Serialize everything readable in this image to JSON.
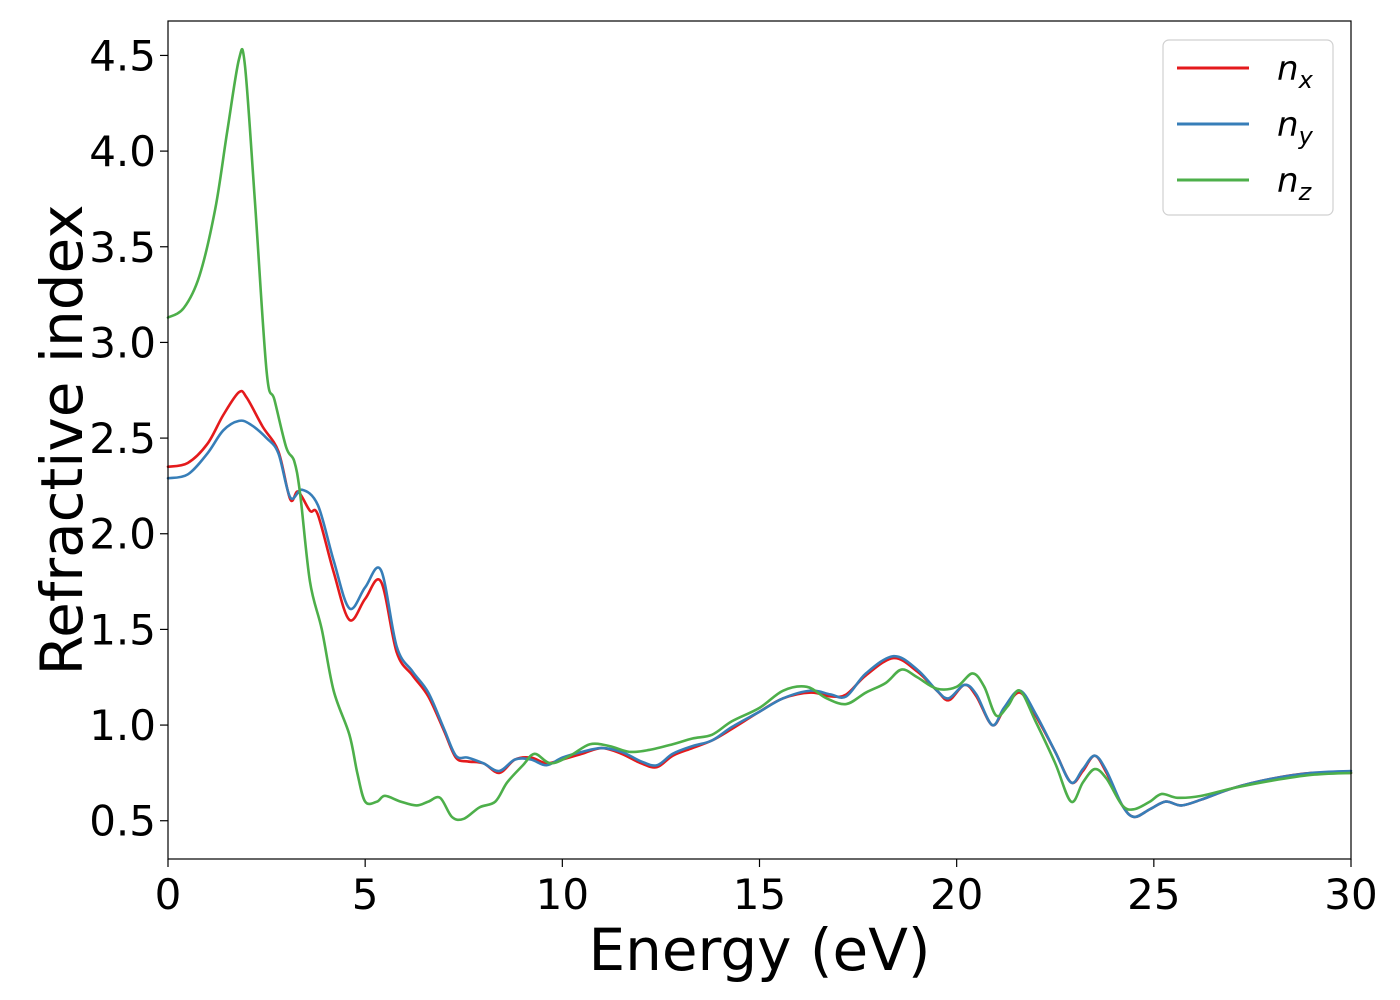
{
  "chart_data": {
    "type": "line",
    "title": "",
    "xlabel": "Energy (eV)",
    "ylabel": "Refractive index",
    "xlim": [
      0,
      30
    ],
    "ylim": [
      0.3,
      4.68
    ],
    "xticks": [
      0,
      5,
      10,
      15,
      20,
      25,
      30
    ],
    "xtick_labels": [
      "0",
      "5",
      "10",
      "15",
      "20",
      "25",
      "30"
    ],
    "yticks": [
      0.5,
      1.0,
      1.5,
      2.0,
      2.5,
      3.0,
      3.5,
      4.0,
      4.5
    ],
    "ytick_labels": [
      "0.5",
      "1.0",
      "1.5",
      "2.0",
      "2.5",
      "3.0",
      "3.5",
      "4.0",
      "4.5"
    ],
    "grid": false,
    "legend_position": "top-right",
    "series": [
      {
        "name": "n_x",
        "legend_base": "n",
        "legend_sub": "x",
        "color": "#e41a1c",
        "points": [
          [
            0,
            2.35
          ],
          [
            0.5,
            2.37
          ],
          [
            1.0,
            2.47
          ],
          [
            1.4,
            2.62
          ],
          [
            1.8,
            2.74
          ],
          [
            2.0,
            2.71
          ],
          [
            2.4,
            2.56
          ],
          [
            2.8,
            2.43
          ],
          [
            3.1,
            2.18
          ],
          [
            3.3,
            2.22
          ],
          [
            3.6,
            2.12
          ],
          [
            3.8,
            2.1
          ],
          [
            4.2,
            1.8
          ],
          [
            4.6,
            1.55
          ],
          [
            5.0,
            1.66
          ],
          [
            5.4,
            1.75
          ],
          [
            5.8,
            1.38
          ],
          [
            6.2,
            1.26
          ],
          [
            6.6,
            1.15
          ],
          [
            7.0,
            0.97
          ],
          [
            7.3,
            0.83
          ],
          [
            7.6,
            0.81
          ],
          [
            8.0,
            0.8
          ],
          [
            8.4,
            0.75
          ],
          [
            8.8,
            0.82
          ],
          [
            9.2,
            0.83
          ],
          [
            9.6,
            0.8
          ],
          [
            10.0,
            0.82
          ],
          [
            10.5,
            0.85
          ],
          [
            11.0,
            0.88
          ],
          [
            11.5,
            0.85
          ],
          [
            12.0,
            0.8
          ],
          [
            12.4,
            0.78
          ],
          [
            12.8,
            0.84
          ],
          [
            13.3,
            0.88
          ],
          [
            13.8,
            0.92
          ],
          [
            14.3,
            0.98
          ],
          [
            15.0,
            1.07
          ],
          [
            15.6,
            1.14
          ],
          [
            16.3,
            1.17
          ],
          [
            16.8,
            1.15
          ],
          [
            17.2,
            1.16
          ],
          [
            17.7,
            1.26
          ],
          [
            18.4,
            1.35
          ],
          [
            19.0,
            1.28
          ],
          [
            19.5,
            1.18
          ],
          [
            19.8,
            1.13
          ],
          [
            20.2,
            1.21
          ],
          [
            20.5,
            1.15
          ],
          [
            20.9,
            1.0
          ],
          [
            21.2,
            1.08
          ],
          [
            21.6,
            1.17
          ],
          [
            22.0,
            1.05
          ],
          [
            22.5,
            0.86
          ],
          [
            22.9,
            0.7
          ],
          [
            23.2,
            0.76
          ],
          [
            23.5,
            0.84
          ],
          [
            23.8,
            0.75
          ],
          [
            24.2,
            0.58
          ],
          [
            24.5,
            0.52
          ],
          [
            24.9,
            0.56
          ],
          [
            25.3,
            0.6
          ],
          [
            25.7,
            0.58
          ],
          [
            26.2,
            0.61
          ],
          [
            27.0,
            0.67
          ],
          [
            28.0,
            0.72
          ],
          [
            29.0,
            0.75
          ],
          [
            30.0,
            0.75
          ]
        ]
      },
      {
        "name": "n_y",
        "legend_base": "n",
        "legend_sub": "y",
        "color": "#377eb8",
        "points": [
          [
            0,
            2.29
          ],
          [
            0.5,
            2.31
          ],
          [
            1.0,
            2.42
          ],
          [
            1.4,
            2.54
          ],
          [
            1.8,
            2.59
          ],
          [
            2.1,
            2.57
          ],
          [
            2.5,
            2.5
          ],
          [
            2.8,
            2.42
          ],
          [
            3.1,
            2.19
          ],
          [
            3.4,
            2.23
          ],
          [
            3.8,
            2.15
          ],
          [
            4.2,
            1.86
          ],
          [
            4.6,
            1.61
          ],
          [
            5.0,
            1.72
          ],
          [
            5.4,
            1.81
          ],
          [
            5.8,
            1.41
          ],
          [
            6.2,
            1.28
          ],
          [
            6.6,
            1.17
          ],
          [
            7.0,
            0.98
          ],
          [
            7.3,
            0.84
          ],
          [
            7.6,
            0.83
          ],
          [
            8.0,
            0.8
          ],
          [
            8.4,
            0.76
          ],
          [
            8.8,
            0.82
          ],
          [
            9.2,
            0.82
          ],
          [
            9.6,
            0.79
          ],
          [
            10.0,
            0.83
          ],
          [
            10.5,
            0.86
          ],
          [
            11.0,
            0.88
          ],
          [
            11.5,
            0.86
          ],
          [
            12.0,
            0.81
          ],
          [
            12.4,
            0.79
          ],
          [
            12.8,
            0.85
          ],
          [
            13.3,
            0.89
          ],
          [
            13.8,
            0.92
          ],
          [
            14.3,
            0.99
          ],
          [
            15.0,
            1.07
          ],
          [
            15.6,
            1.14
          ],
          [
            16.3,
            1.18
          ],
          [
            16.8,
            1.16
          ],
          [
            17.2,
            1.15
          ],
          [
            17.7,
            1.27
          ],
          [
            18.4,
            1.36
          ],
          [
            19.0,
            1.29
          ],
          [
            19.5,
            1.18
          ],
          [
            19.8,
            1.14
          ],
          [
            20.2,
            1.21
          ],
          [
            20.5,
            1.16
          ],
          [
            20.9,
            1.0
          ],
          [
            21.2,
            1.09
          ],
          [
            21.6,
            1.18
          ],
          [
            22.0,
            1.06
          ],
          [
            22.5,
            0.86
          ],
          [
            22.9,
            0.7
          ],
          [
            23.2,
            0.77
          ],
          [
            23.5,
            0.84
          ],
          [
            23.8,
            0.76
          ],
          [
            24.2,
            0.58
          ],
          [
            24.5,
            0.52
          ],
          [
            24.9,
            0.56
          ],
          [
            25.3,
            0.6
          ],
          [
            25.7,
            0.58
          ],
          [
            26.2,
            0.61
          ],
          [
            27.0,
            0.67
          ],
          [
            28.0,
            0.72
          ],
          [
            29.0,
            0.75
          ],
          [
            30.0,
            0.76
          ]
        ]
      },
      {
        "name": "n_z",
        "legend_base": "n",
        "legend_sub": "z",
        "color": "#4daf4a",
        "points": [
          [
            0,
            3.13
          ],
          [
            0.4,
            3.18
          ],
          [
            0.8,
            3.35
          ],
          [
            1.2,
            3.7
          ],
          [
            1.5,
            4.1
          ],
          [
            1.8,
            4.48
          ],
          [
            1.95,
            4.45
          ],
          [
            2.2,
            3.75
          ],
          [
            2.5,
            2.85
          ],
          [
            2.7,
            2.7
          ],
          [
            3.0,
            2.45
          ],
          [
            3.2,
            2.38
          ],
          [
            3.35,
            2.21
          ],
          [
            3.6,
            1.75
          ],
          [
            3.9,
            1.5
          ],
          [
            4.2,
            1.18
          ],
          [
            4.6,
            0.95
          ],
          [
            4.8,
            0.75
          ],
          [
            5.0,
            0.6
          ],
          [
            5.3,
            0.6
          ],
          [
            5.5,
            0.63
          ],
          [
            5.9,
            0.6
          ],
          [
            6.3,
            0.58
          ],
          [
            6.6,
            0.6
          ],
          [
            6.9,
            0.62
          ],
          [
            7.2,
            0.52
          ],
          [
            7.5,
            0.51
          ],
          [
            7.9,
            0.57
          ],
          [
            8.3,
            0.6
          ],
          [
            8.6,
            0.7
          ],
          [
            9.0,
            0.79
          ],
          [
            9.3,
            0.85
          ],
          [
            9.7,
            0.8
          ],
          [
            10.2,
            0.84
          ],
          [
            10.7,
            0.9
          ],
          [
            11.2,
            0.89
          ],
          [
            11.7,
            0.86
          ],
          [
            12.2,
            0.87
          ],
          [
            12.8,
            0.9
          ],
          [
            13.3,
            0.93
          ],
          [
            13.8,
            0.95
          ],
          [
            14.3,
            1.02
          ],
          [
            15.0,
            1.09
          ],
          [
            15.6,
            1.18
          ],
          [
            16.2,
            1.2
          ],
          [
            16.7,
            1.14
          ],
          [
            17.2,
            1.11
          ],
          [
            17.7,
            1.17
          ],
          [
            18.2,
            1.22
          ],
          [
            18.6,
            1.29
          ],
          [
            19.0,
            1.25
          ],
          [
            19.5,
            1.19
          ],
          [
            20.0,
            1.2
          ],
          [
            20.4,
            1.27
          ],
          [
            20.7,
            1.2
          ],
          [
            21.0,
            1.05
          ],
          [
            21.3,
            1.1
          ],
          [
            21.6,
            1.18
          ],
          [
            22.0,
            1.02
          ],
          [
            22.5,
            0.8
          ],
          [
            22.9,
            0.6
          ],
          [
            23.2,
            0.7
          ],
          [
            23.5,
            0.77
          ],
          [
            23.8,
            0.72
          ],
          [
            24.2,
            0.58
          ],
          [
            24.5,
            0.56
          ],
          [
            24.9,
            0.6
          ],
          [
            25.2,
            0.64
          ],
          [
            25.6,
            0.62
          ],
          [
            26.2,
            0.63
          ],
          [
            27.0,
            0.67
          ],
          [
            28.0,
            0.71
          ],
          [
            29.0,
            0.74
          ],
          [
            30.0,
            0.75
          ]
        ]
      }
    ]
  }
}
